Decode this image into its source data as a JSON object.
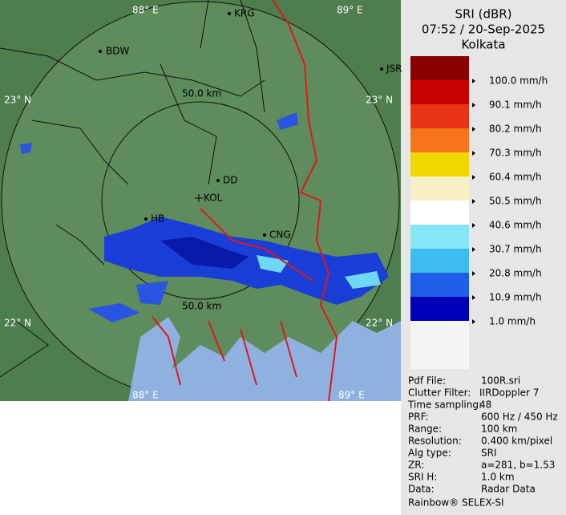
{
  "map": {
    "lon_labels": [
      "88° E",
      "89° E",
      "88° E",
      "89° E"
    ],
    "lat_labels": [
      "23° N",
      "23° N",
      "22° N",
      "22° N"
    ],
    "cities": [
      "KRG",
      "BDW",
      "JSR",
      "DD",
      "KOL",
      "HB",
      "CNG"
    ],
    "ring_labels": [
      "50.0 km",
      "50.0 km"
    ]
  },
  "legend": {
    "title": "SRI (dBR)",
    "time": "07:52 / 20-Sep-2025",
    "station": "Kolkata",
    "levels": [
      "100.0 mm/h",
      "90.1 mm/h",
      "80.2 mm/h",
      "70.3 mm/h",
      "60.4 mm/h",
      "50.5 mm/h",
      "40.6 mm/h",
      "30.7 mm/h",
      "20.8 mm/h",
      "10.9 mm/h",
      "1.0 mm/h"
    ]
  },
  "info": {
    "rows": [
      [
        "Pdf File:",
        "100R.sri"
      ],
      [
        "Clutter Filter:",
        "IIRDoppler 7"
      ],
      [
        "Time sampling:",
        "48"
      ],
      [
        "PRF:",
        "600 Hz / 450 Hz"
      ],
      [
        "Range:",
        "100 km"
      ],
      [
        "Resolution:",
        "0.400 km/pixel"
      ],
      [
        "Alg type:",
        "SRI"
      ],
      [
        "ZR:",
        "a=281, b=1.53"
      ],
      [
        "SRI H:",
        "1.0 km"
      ],
      [
        "Data:",
        "Radar Data"
      ]
    ],
    "footer": "Rainbow® SELEX-SI"
  }
}
